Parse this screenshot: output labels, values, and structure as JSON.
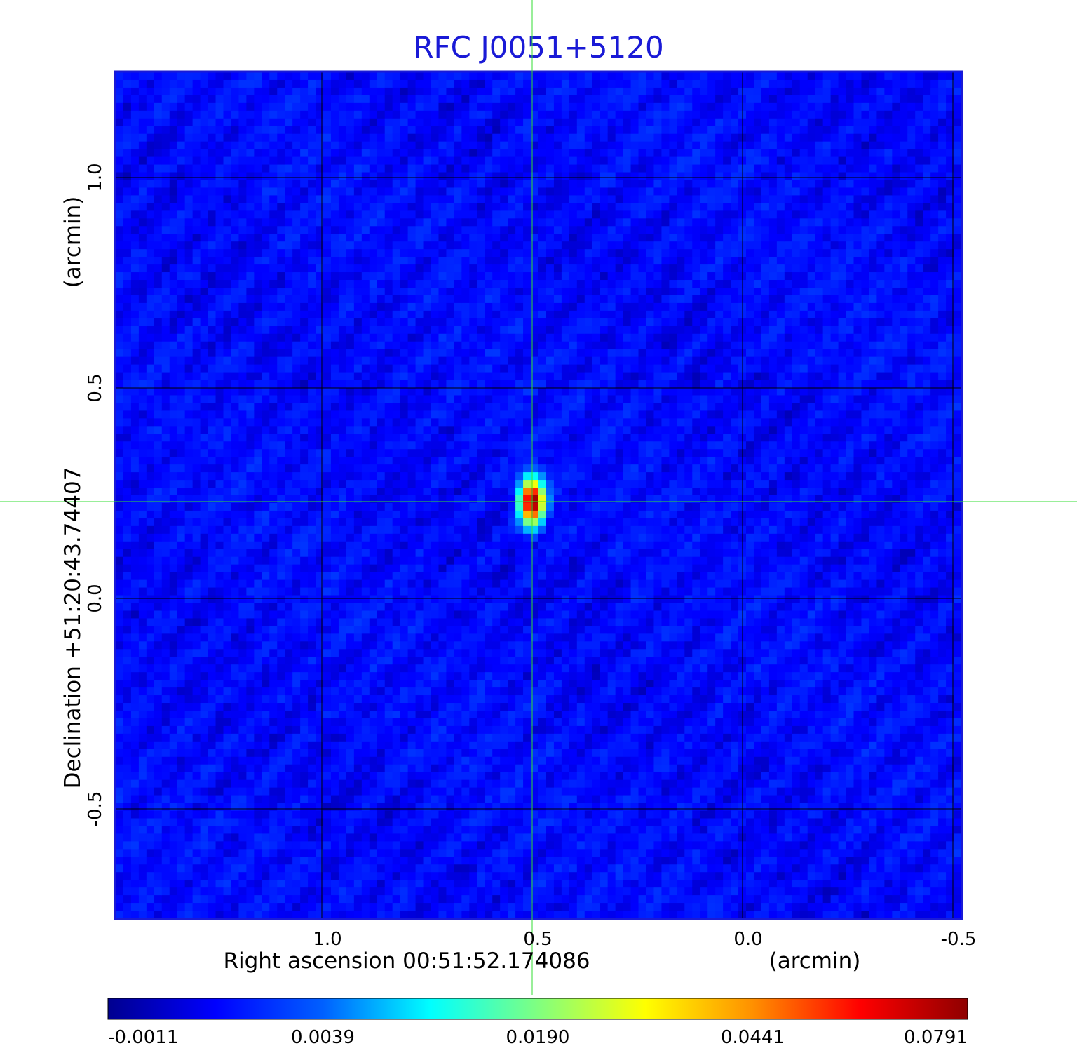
{
  "chart_data": {
    "type": "heatmap",
    "title": "RFC J0051+5120",
    "xlabel": "Right ascension  00:51:52.174086",
    "xunit": "(arcmin)",
    "ylabel": "Declination  +51:20:43.74407",
    "yunit": "(arcmin)",
    "x_ticks": [
      {
        "value": 1.0,
        "label": "1.0"
      },
      {
        "value": 0.5,
        "label": "0.5"
      },
      {
        "value": 0.0,
        "label": "0.0"
      },
      {
        "value": -0.5,
        "label": "-0.5"
      }
    ],
    "y_ticks": [
      {
        "value": 1.0,
        "label": "1.0"
      },
      {
        "value": 0.5,
        "label": "0.5"
      },
      {
        "value": 0.0,
        "label": "0.0"
      },
      {
        "value": -0.5,
        "label": "-0.5"
      }
    ],
    "xlim": [
      1.49,
      -0.52
    ],
    "ylim": [
      -0.76,
      1.25
    ],
    "grid": true,
    "crosshair": {
      "x": 0.5,
      "y": 0.23,
      "color": "#33dd33"
    },
    "peak": {
      "x": 0.5,
      "y": 0.23,
      "value": 0.0791
    },
    "colorbar": {
      "position": "bottom",
      "colormap": "jet",
      "min": -0.0011,
      "max": 0.0791,
      "tick_labels": [
        "-0.0011",
        "0.0039",
        "0.0190",
        "0.0441",
        "0.0791"
      ]
    },
    "colors": {
      "frame": "#1a1ad6",
      "background_map": "#1f4fef",
      "grid": "#000000"
    }
  }
}
